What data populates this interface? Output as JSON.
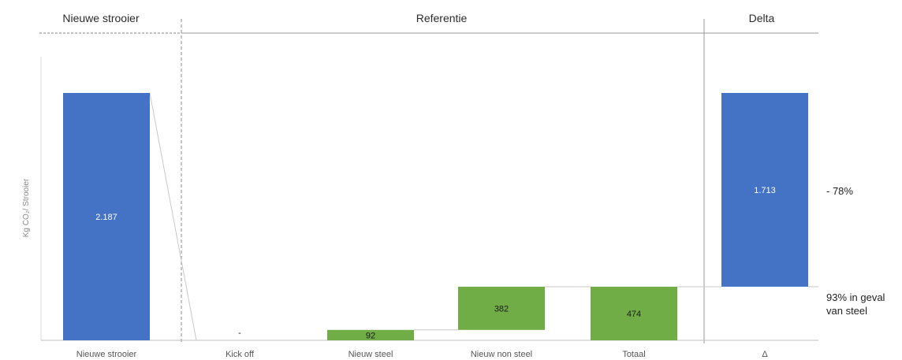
{
  "sections": {
    "left": "Nieuwe strooier",
    "middle": "Referentie",
    "right": "Delta"
  },
  "annotations": {
    "reduction": "- 78%",
    "steel_line1": "93% in geval",
    "steel_line2": "van steel"
  },
  "colors": {
    "blue": "#4472c4",
    "green": "#70ad47"
  },
  "chart_data": {
    "type": "bar",
    "ylabel": "Kg CO₂/ Strooier",
    "categories": [
      "Nieuwe strooier",
      "Kick off",
      "Nieuw steel",
      "Nieuw non steel",
      "Totaal",
      "Δ"
    ],
    "bars": [
      {
        "category": "Nieuwe strooier",
        "base": 0,
        "value": 2187,
        "label": "2.187",
        "color": "blue"
      },
      {
        "category": "Kick off",
        "base": 0,
        "value": 0,
        "label": "-",
        "color": "green"
      },
      {
        "category": "Nieuw steel",
        "base": 0,
        "value": 92,
        "label": "92",
        "color": "green"
      },
      {
        "category": "Nieuw non steel",
        "base": 92,
        "value": 382,
        "label": "382",
        "color": "green"
      },
      {
        "category": "Totaal",
        "base": 0,
        "value": 474,
        "label": "474",
        "color": "green"
      },
      {
        "category": "Δ",
        "base": 474,
        "value": 1713,
        "label": "1.713",
        "color": "blue"
      }
    ],
    "ylim": [
      0,
      2187
    ]
  }
}
